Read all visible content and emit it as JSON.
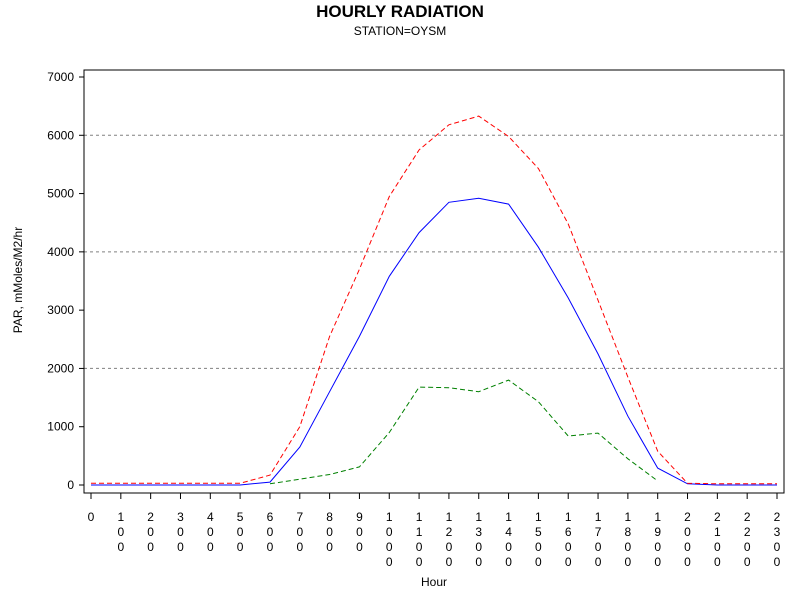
{
  "chart_data": {
    "type": "line",
    "title": "HOURLY RADIATION",
    "subtitle": "STATION=OYSM",
    "xlabel": "Hour",
    "ylabel": "PAR, mMoles/M2/hr",
    "ylim": [
      0,
      7000
    ],
    "yticks": [
      0,
      1000,
      2000,
      3000,
      4000,
      5000,
      6000,
      7000
    ],
    "xlim": [
      0,
      2300
    ],
    "x": [
      0,
      100,
      200,
      300,
      400,
      500,
      600,
      700,
      800,
      900,
      1000,
      1100,
      1200,
      1300,
      1400,
      1500,
      1600,
      1700,
      1800,
      1900,
      2000,
      2100,
      2200,
      2300
    ],
    "xtick_labels": [
      "0",
      "100",
      "200",
      "300",
      "400",
      "500",
      "600",
      "700",
      "800",
      "900",
      "1000",
      "1100",
      "1200",
      "1300",
      "1400",
      "1500",
      "1600",
      "1700",
      "1800",
      "1900",
      "2000",
      "2100",
      "2200",
      "2300"
    ],
    "grid": "horizontal dashed at 2000, 4000, 6000",
    "legend": "none",
    "series": [
      {
        "color": "#0000ff",
        "style": "solid",
        "values": [
          0,
          0,
          0,
          0,
          0,
          0,
          50,
          650,
          1600,
          2550,
          3580,
          4330,
          4850,
          4920,
          4820,
          4080,
          3210,
          2250,
          1180,
          290,
          20,
          0,
          0,
          0
        ]
      },
      {
        "color": "#ff0000",
        "style": "dashed",
        "values": [
          30,
          30,
          30,
          30,
          30,
          30,
          170,
          1000,
          2550,
          3700,
          4950,
          5750,
          6180,
          6330,
          5980,
          5430,
          4480,
          3170,
          1850,
          580,
          30,
          20,
          20,
          20
        ]
      },
      {
        "color": "#008000",
        "style": "dashed",
        "values": [
          null,
          null,
          null,
          null,
          null,
          null,
          20,
          100,
          180,
          310,
          900,
          1680,
          1670,
          1600,
          1800,
          1430,
          840,
          890,
          450,
          70,
          null,
          null,
          null,
          null
        ]
      }
    ]
  }
}
